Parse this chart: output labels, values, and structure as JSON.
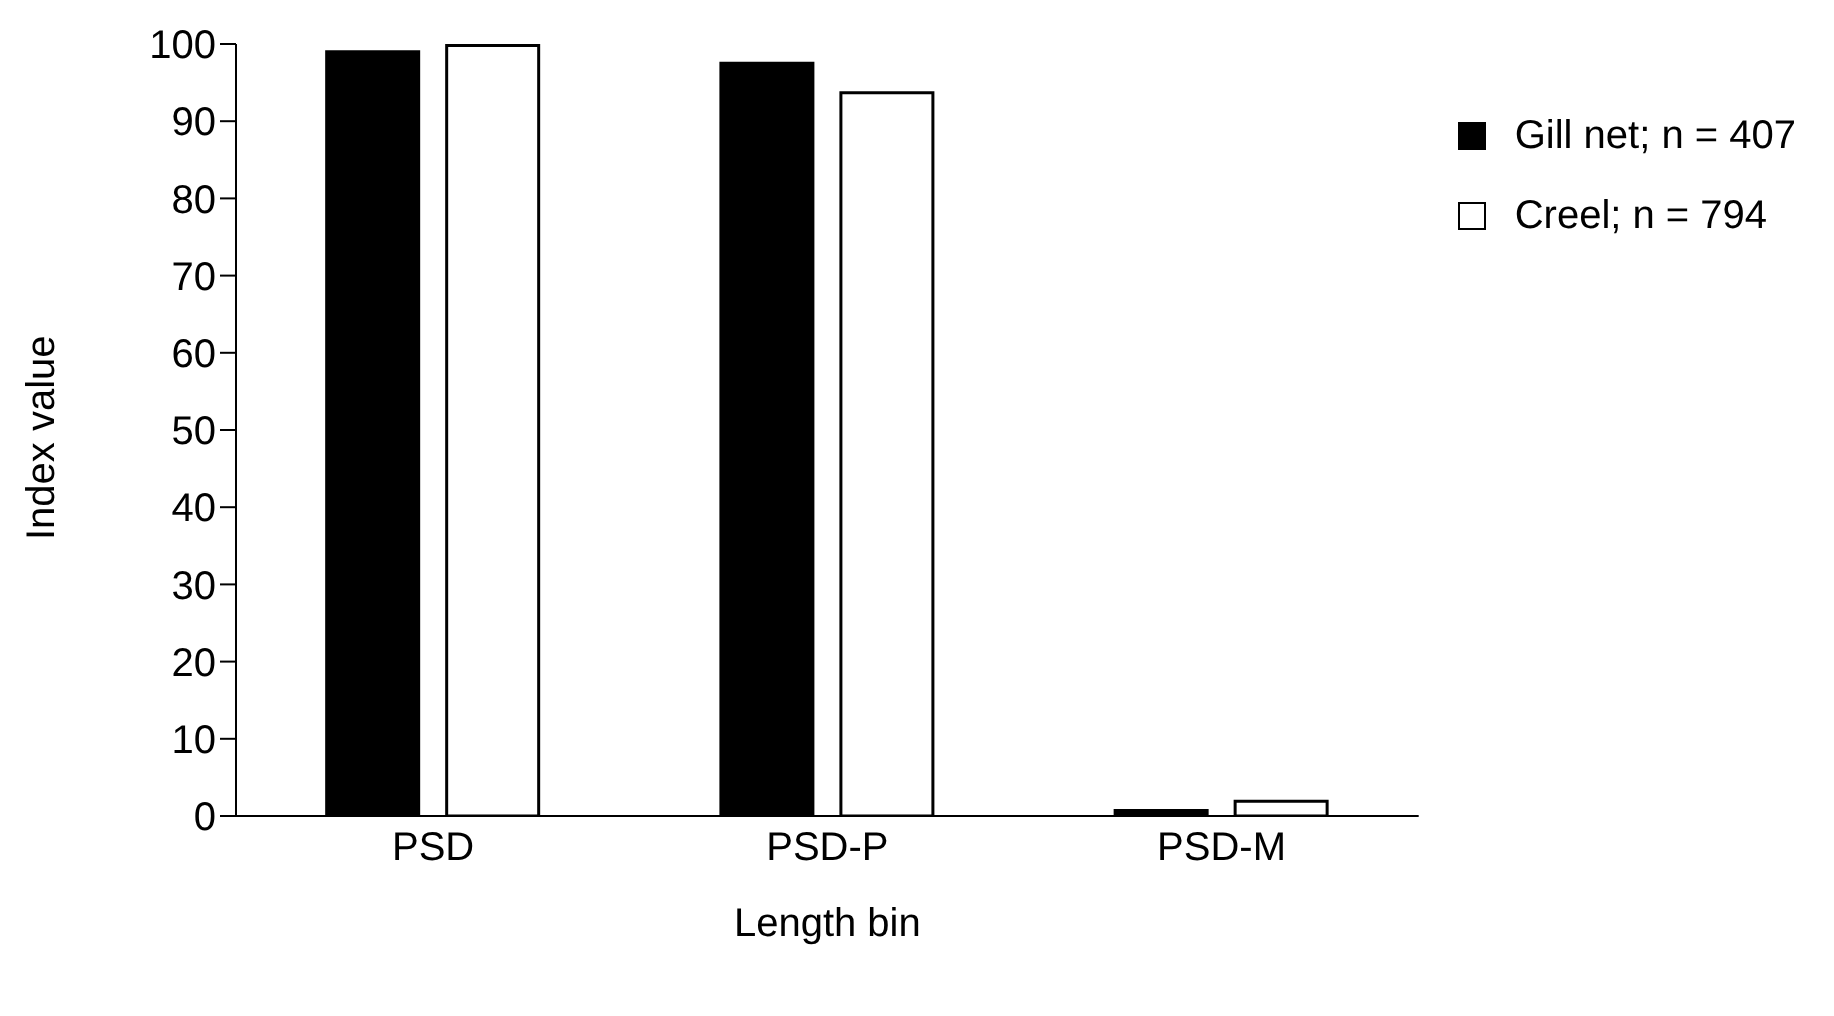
{
  "chart_data": {
    "type": "bar",
    "xlabel": "Length bin",
    "ylabel": "Index value",
    "categories": [
      "PSD",
      "PSD-P",
      "PSD-M"
    ],
    "series": [
      {
        "name": "Gill net; n = 407",
        "color": "#000000",
        "values": [
          99,
          97.5,
          0.7
        ]
      },
      {
        "name": "Creel; n = 794",
        "color": "#ffffff",
        "values": [
          99.8,
          93.7,
          1.9
        ]
      }
    ],
    "ylim": [
      0,
      100
    ],
    "yticks": [
      0,
      10,
      20,
      30,
      40,
      50,
      60,
      70,
      80,
      90,
      100
    ],
    "grid": false,
    "legend": "top right"
  }
}
